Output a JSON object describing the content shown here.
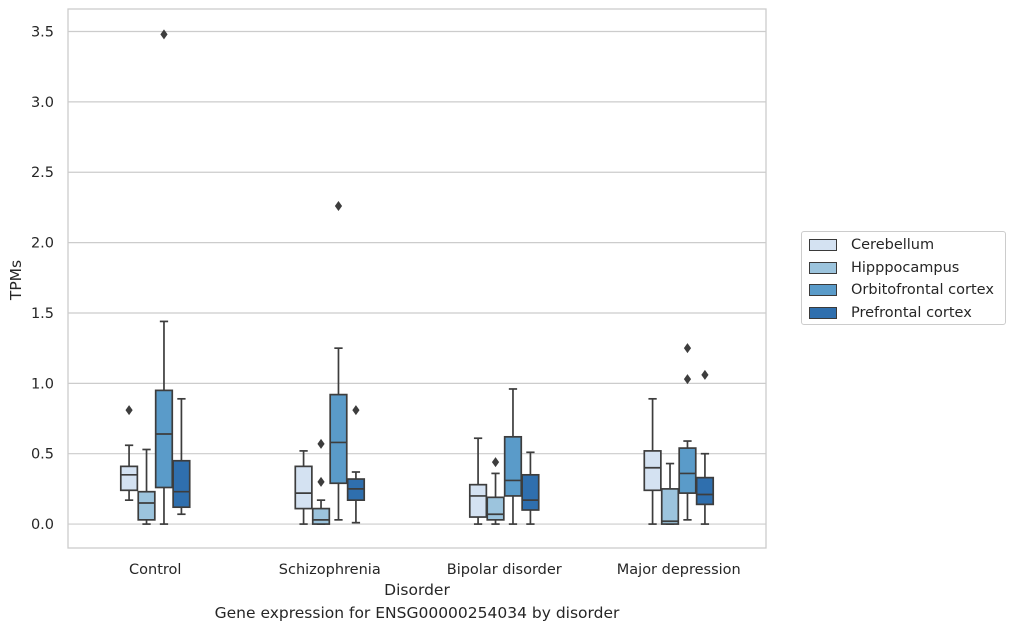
{
  "caption": "Gene expression for ENSG00000254034 by disorder",
  "chart_data": {
    "type": "box",
    "title": "",
    "xlabel": "Disorder",
    "ylabel": "TPMs",
    "ylim": [
      -0.17,
      3.66
    ],
    "yticks": [
      0.0,
      0.5,
      1.0,
      1.5,
      2.0,
      2.5,
      3.0,
      3.5
    ],
    "ytick_labels": [
      "0.0",
      "0.5",
      "1.0",
      "1.5",
      "2.0",
      "2.5",
      "3.0",
      "3.5"
    ],
    "grid": "horizontal",
    "legend_position": "right",
    "categories": [
      "Control",
      "Schizophrenia",
      "Bipolar disorder",
      "Major depression"
    ],
    "series": [
      {
        "name": "Cerebellum",
        "color": "#d4e2f2",
        "boxes": [
          {
            "whisker_low": 0.17,
            "q1": 0.24,
            "median": 0.35,
            "q3": 0.41,
            "whisker_high": 0.56,
            "outliers": [
              0.81
            ]
          },
          {
            "whisker_low": 0.0,
            "q1": 0.11,
            "median": 0.22,
            "q3": 0.41,
            "whisker_high": 0.52,
            "outliers": []
          },
          {
            "whisker_low": 0.0,
            "q1": 0.05,
            "median": 0.2,
            "q3": 0.28,
            "whisker_high": 0.61,
            "outliers": []
          },
          {
            "whisker_low": 0.0,
            "q1": 0.24,
            "median": 0.4,
            "q3": 0.52,
            "whisker_high": 0.89,
            "outliers": []
          }
        ]
      },
      {
        "name": "Hipppocampus",
        "color": "#9cc4dd",
        "boxes": [
          {
            "whisker_low": 0.0,
            "q1": 0.03,
            "median": 0.15,
            "q3": 0.23,
            "whisker_high": 0.53,
            "outliers": []
          },
          {
            "whisker_low": 0.0,
            "q1": 0.0,
            "median": 0.03,
            "q3": 0.11,
            "whisker_high": 0.17,
            "outliers": [
              0.57,
              0.3
            ]
          },
          {
            "whisker_low": 0.0,
            "q1": 0.03,
            "median": 0.07,
            "q3": 0.19,
            "whisker_high": 0.36,
            "outliers": [
              0.44
            ]
          },
          {
            "whisker_low": 0.0,
            "q1": 0.0,
            "median": 0.02,
            "q3": 0.25,
            "whisker_high": 0.43,
            "outliers": []
          }
        ]
      },
      {
        "name": "Orbitofrontal cortex",
        "color": "#5a9bc9",
        "boxes": [
          {
            "whisker_low": 0.0,
            "q1": 0.26,
            "median": 0.64,
            "q3": 0.95,
            "whisker_high": 1.44,
            "outliers": [
              3.48
            ]
          },
          {
            "whisker_low": 0.03,
            "q1": 0.29,
            "median": 0.58,
            "q3": 0.92,
            "whisker_high": 1.25,
            "outliers": [
              2.26
            ]
          },
          {
            "whisker_low": 0.0,
            "q1": 0.2,
            "median": 0.31,
            "q3": 0.62,
            "whisker_high": 0.96,
            "outliers": []
          },
          {
            "whisker_low": 0.03,
            "q1": 0.22,
            "median": 0.36,
            "q3": 0.54,
            "whisker_high": 0.59,
            "outliers": [
              1.25,
              1.03
            ]
          }
        ]
      },
      {
        "name": "Prefrontal cortex",
        "color": "#2f6fae",
        "boxes": [
          {
            "whisker_low": 0.07,
            "q1": 0.12,
            "median": 0.23,
            "q3": 0.45,
            "whisker_high": 0.89,
            "outliers": []
          },
          {
            "whisker_low": 0.01,
            "q1": 0.17,
            "median": 0.25,
            "q3": 0.32,
            "whisker_high": 0.37,
            "outliers": [
              0.81
            ]
          },
          {
            "whisker_low": 0.0,
            "q1": 0.1,
            "median": 0.17,
            "q3": 0.35,
            "whisker_high": 0.51,
            "outliers": []
          },
          {
            "whisker_low": 0.0,
            "q1": 0.14,
            "median": 0.21,
            "q3": 0.33,
            "whisker_high": 0.5,
            "outliers": [
              1.06
            ]
          }
        ]
      }
    ]
  }
}
